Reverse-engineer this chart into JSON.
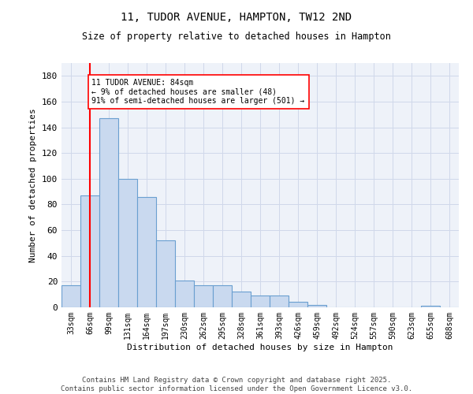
{
  "title": "11, TUDOR AVENUE, HAMPTON, TW12 2ND",
  "subtitle": "Size of property relative to detached houses in Hampton",
  "xlabel": "Distribution of detached houses by size in Hampton",
  "ylabel": "Number of detached properties",
  "bar_labels": [
    "33sqm",
    "66sqm",
    "99sqm",
    "131sqm",
    "164sqm",
    "197sqm",
    "230sqm",
    "262sqm",
    "295sqm",
    "328sqm",
    "361sqm",
    "393sqm",
    "426sqm",
    "459sqm",
    "492sqm",
    "524sqm",
    "557sqm",
    "590sqm",
    "623sqm",
    "655sqm",
    "688sqm"
  ],
  "bar_values": [
    17,
    87,
    147,
    100,
    86,
    52,
    21,
    17,
    17,
    12,
    9,
    9,
    4,
    2,
    0,
    0,
    0,
    0,
    0,
    1,
    0
  ],
  "bar_color": "#c9d9ef",
  "bar_edge_color": "#6a9fd0",
  "vline_x": 1.0,
  "vline_color": "red",
  "annotation_text": "11 TUDOR AVENUE: 84sqm\n← 9% of detached houses are smaller (48)\n91% of semi-detached houses are larger (501) →",
  "annotation_box_color": "white",
  "annotation_box_edge": "red",
  "ylim": [
    0,
    190
  ],
  "yticks": [
    0,
    20,
    40,
    60,
    80,
    100,
    120,
    140,
    160,
    180
  ],
  "grid_color": "#d0d8ea",
  "background_color": "#eef2f9",
  "footer_text": "Contains HM Land Registry data © Crown copyright and database right 2025.\nContains public sector information licensed under the Open Government Licence v3.0."
}
